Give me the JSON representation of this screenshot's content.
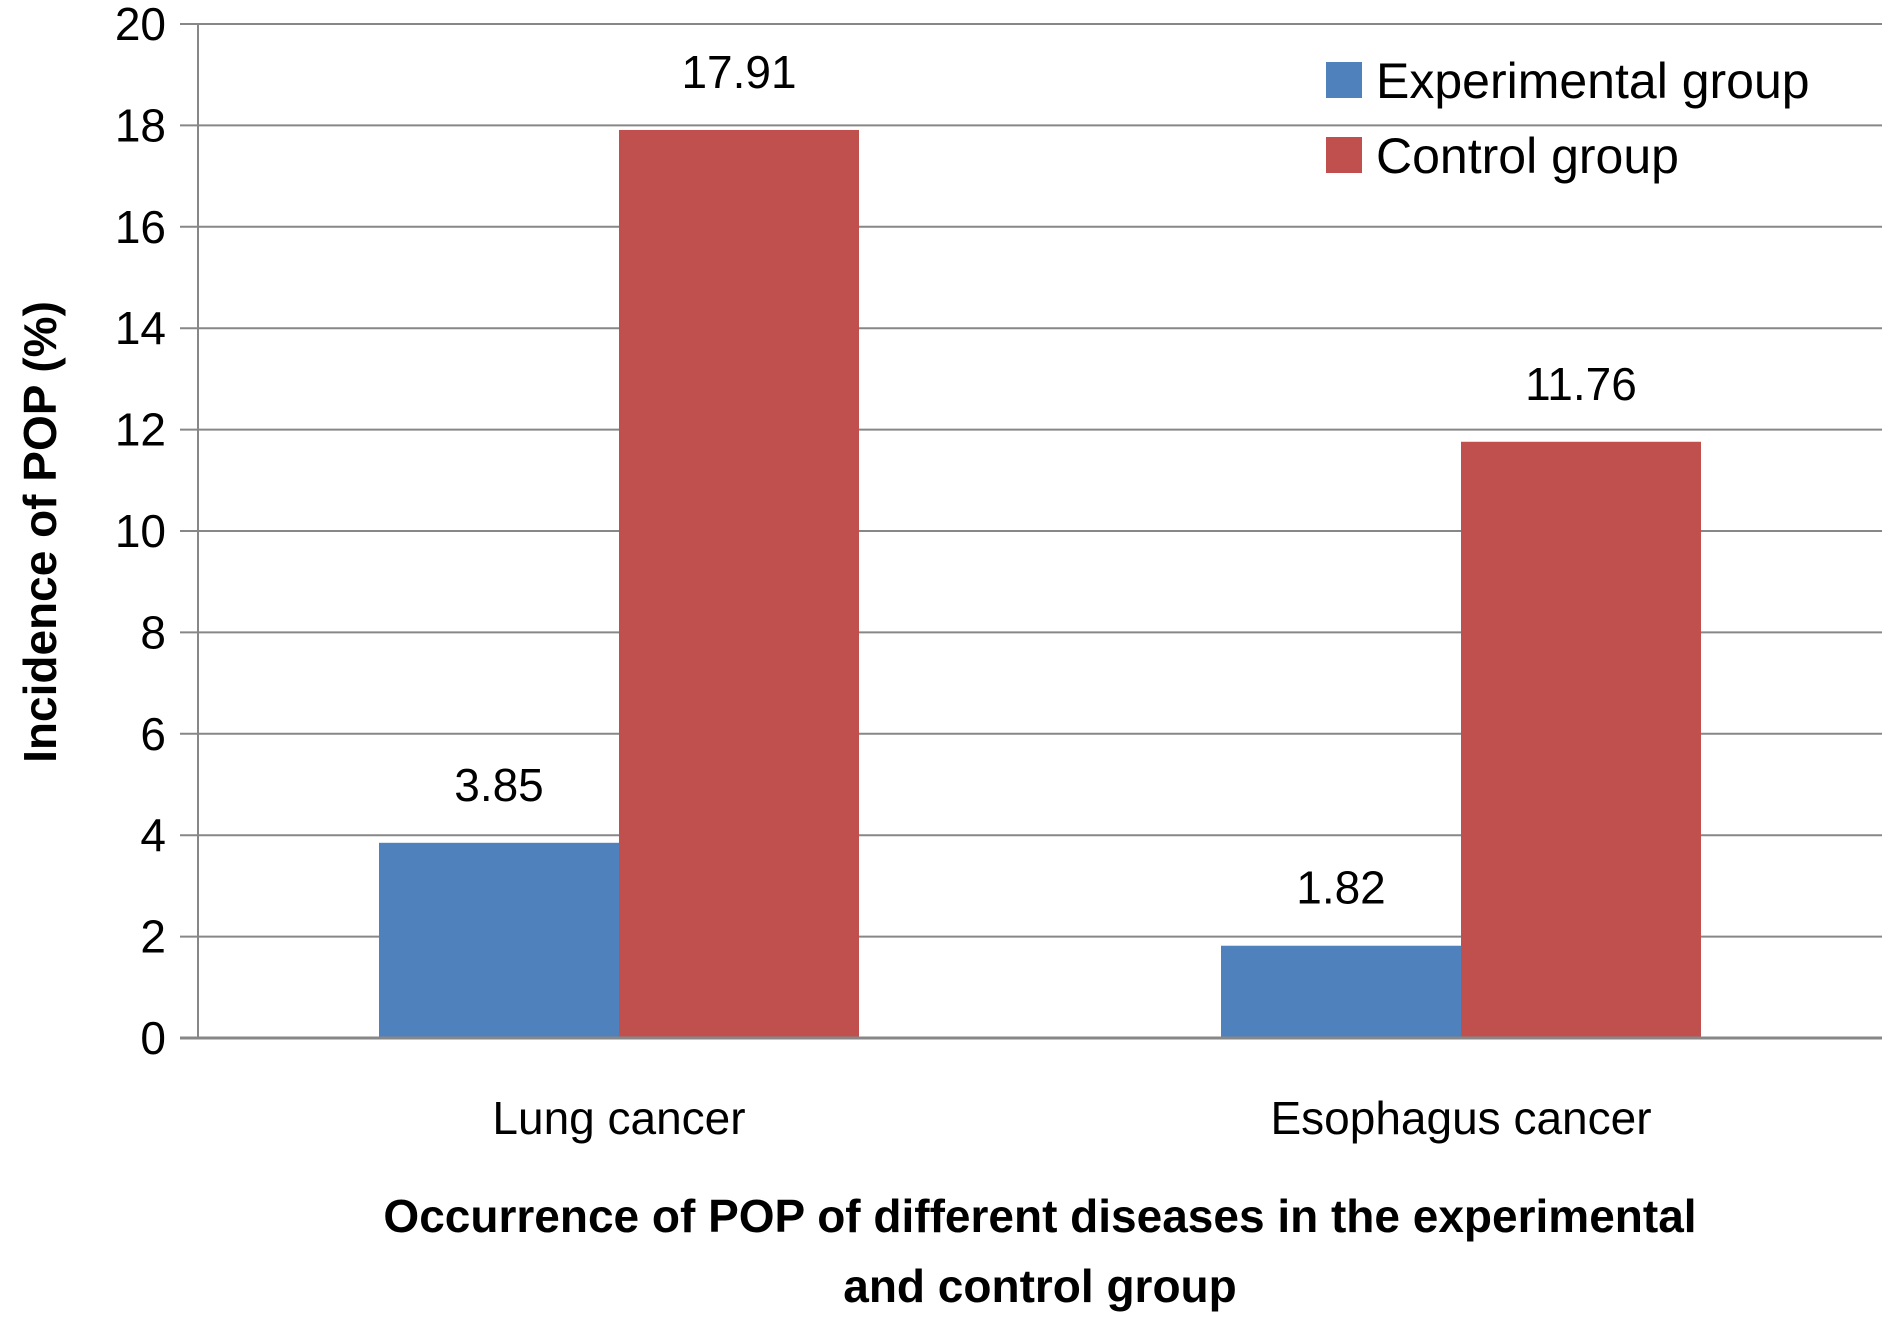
{
  "chart_data": {
    "type": "bar",
    "categories": [
      "Lung cancer",
      "Esophagus cancer"
    ],
    "series": [
      {
        "name": "Experimental group",
        "values": [
          3.85,
          1.82
        ],
        "color": "#4F81BD"
      },
      {
        "name": "Control group",
        "values": [
          17.91,
          11.76
        ],
        "color": "#C0504D"
      }
    ],
    "data_labels": [
      [
        "3.85",
        "1.82"
      ],
      [
        "17.91",
        "11.76"
      ]
    ],
    "title": "",
    "xlabel": [
      "Occurrence of POP of different diseases in the experimental",
      "and control group"
    ],
    "ylabel": "Incidence of POP (%)",
    "ylim": [
      0,
      20
    ],
    "yticks": [
      "0",
      "2",
      "4",
      "6",
      "8",
      "10",
      "12",
      "14",
      "16",
      "18",
      "20"
    ],
    "grid": true,
    "legend_position": "top-right"
  }
}
